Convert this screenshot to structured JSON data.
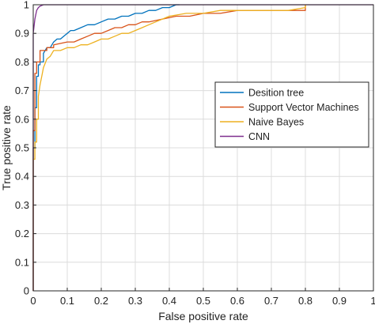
{
  "chart_data": {
    "type": "line",
    "title": "",
    "xlabel": "False positive rate",
    "ylabel": "True positive rate",
    "xlim": [
      0,
      1
    ],
    "ylim": [
      0,
      1
    ],
    "xticks": [
      "0",
      "0.1",
      "0.2",
      "0.3",
      "0.4",
      "0.5",
      "0.6",
      "0.7",
      "0.8",
      "0.9",
      "1"
    ],
    "yticks": [
      "0",
      "0.1",
      "0.2",
      "0.3",
      "0.4",
      "0.5",
      "0.6",
      "0.7",
      "0.8",
      "0.9",
      "1"
    ],
    "grid": true,
    "legend_position": "right",
    "series": [
      {
        "name": "Desition tree",
        "color": "#0072BD",
        "x": [
          0,
          0,
          0.005,
          0.005,
          0.01,
          0.01,
          0.015,
          0.015,
          0.02,
          0.02,
          0.03,
          0.03,
          0.04,
          0.05,
          0.06,
          0.07,
          0.08,
          0.09,
          0.1,
          0.11,
          0.12,
          0.14,
          0.16,
          0.18,
          0.2,
          0.22,
          0.24,
          0.26,
          0.28,
          0.3,
          0.32,
          0.34,
          0.36,
          0.38,
          0.4,
          0.42,
          0.43
        ],
        "y": [
          0,
          0.5,
          0.5,
          0.64,
          0.64,
          0.75,
          0.75,
          0.79,
          0.79,
          0.8,
          0.8,
          0.83,
          0.85,
          0.85,
          0.87,
          0.88,
          0.88,
          0.89,
          0.9,
          0.91,
          0.91,
          0.92,
          0.93,
          0.93,
          0.94,
          0.95,
          0.95,
          0.96,
          0.96,
          0.97,
          0.97,
          0.98,
          0.98,
          0.99,
          0.99,
          1,
          1
        ]
      },
      {
        "name": "Support Vector Machines",
        "color": "#D95319",
        "x": [
          0,
          0,
          0.005,
          0.005,
          0.01,
          0.01,
          0.02,
          0.02,
          0.04,
          0.04,
          0.06,
          0.06,
          0.1,
          0.12,
          0.14,
          0.16,
          0.18,
          0.2,
          0.22,
          0.24,
          0.26,
          0.28,
          0.3,
          0.32,
          0.34,
          0.38,
          0.42,
          0.46,
          0.5,
          0.55,
          0.6,
          0.65,
          0.7,
          0.75,
          0.8,
          0.8
        ],
        "y": [
          0,
          0.56,
          0.56,
          0.76,
          0.76,
          0.8,
          0.8,
          0.84,
          0.84,
          0.85,
          0.85,
          0.86,
          0.87,
          0.87,
          0.88,
          0.89,
          0.9,
          0.9,
          0.91,
          0.92,
          0.92,
          0.93,
          0.93,
          0.94,
          0.94,
          0.95,
          0.96,
          0.96,
          0.97,
          0.97,
          0.98,
          0.98,
          0.98,
          0.98,
          0.98,
          1
        ]
      },
      {
        "name": "Naive Bayes",
        "color": "#EDB120",
        "x": [
          0,
          0,
          0.005,
          0.005,
          0.01,
          0.01,
          0.015,
          0.015,
          0.02,
          0.025,
          0.03,
          0.04,
          0.05,
          0.06,
          0.08,
          0.1,
          0.12,
          0.14,
          0.16,
          0.18,
          0.2,
          0.22,
          0.24,
          0.26,
          0.28,
          0.3,
          0.32,
          0.34,
          0.36,
          0.4,
          0.45,
          0.5,
          0.55,
          0.6,
          0.65,
          0.7,
          0.75,
          0.8,
          0.8
        ],
        "y": [
          0,
          0.46,
          0.46,
          0.52,
          0.52,
          0.6,
          0.6,
          0.68,
          0.72,
          0.75,
          0.78,
          0.81,
          0.82,
          0.84,
          0.84,
          0.85,
          0.85,
          0.86,
          0.86,
          0.87,
          0.88,
          0.88,
          0.89,
          0.9,
          0.9,
          0.91,
          0.92,
          0.93,
          0.94,
          0.96,
          0.97,
          0.97,
          0.98,
          0.98,
          0.98,
          0.98,
          0.98,
          0.99,
          1
        ]
      },
      {
        "name": "CNN",
        "color": "#7E2F8E",
        "x": [
          0,
          0,
          0.005,
          0.01,
          0.015,
          0.02,
          0.03,
          0.05,
          1
        ],
        "y": [
          0,
          0.9,
          0.95,
          0.98,
          0.99,
          0.995,
          1,
          1,
          1
        ]
      }
    ]
  }
}
